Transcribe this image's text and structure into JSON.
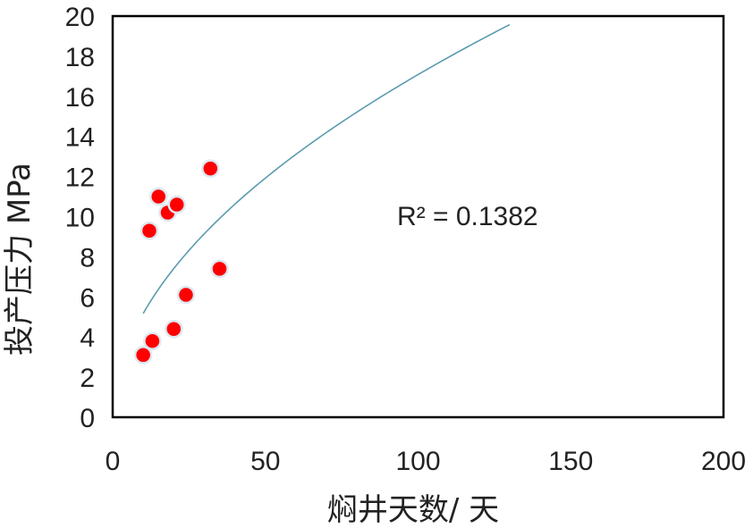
{
  "chart_data": {
    "type": "scatter",
    "xlabel": "焖井天数/ 天",
    "ylabel": "投产压力 MPa",
    "xlim": [
      0,
      200
    ],
    "ylim": [
      0,
      20
    ],
    "x_ticks": [
      "0",
      "50",
      "100",
      "150",
      "200"
    ],
    "y_ticks": [
      "0",
      "2",
      "4",
      "6",
      "8",
      "10",
      "12",
      "14",
      "16",
      "18",
      "20"
    ],
    "grid": false,
    "annotation": "R² = 0.1382",
    "series": [
      {
        "points": [
          {
            "x": 10,
            "y": 3.1
          },
          {
            "x": 13,
            "y": 3.8
          },
          {
            "x": 12,
            "y": 9.3
          },
          {
            "x": 15,
            "y": 11.0
          },
          {
            "x": 18,
            "y": 10.2
          },
          {
            "x": 21,
            "y": 10.6
          },
          {
            "x": 20,
            "y": 4.4
          },
          {
            "x": 24,
            "y": 6.1
          },
          {
            "x": 32,
            "y": 12.4
          },
          {
            "x": 35,
            "y": 7.4
          }
        ],
        "color": "#ff0000"
      }
    ],
    "trendline": {
      "type": "power",
      "x_range": [
        10,
        130
      ],
      "color": "#5b9bb0",
      "points": [
        {
          "x": 10,
          "y": 5.1
        },
        {
          "x": 25,
          "y": 8.6
        },
        {
          "x": 50,
          "y": 11.9
        },
        {
          "x": 75,
          "y": 14.4
        },
        {
          "x": 100,
          "y": 16.8
        },
        {
          "x": 130,
          "y": 20.0
        }
      ]
    }
  }
}
